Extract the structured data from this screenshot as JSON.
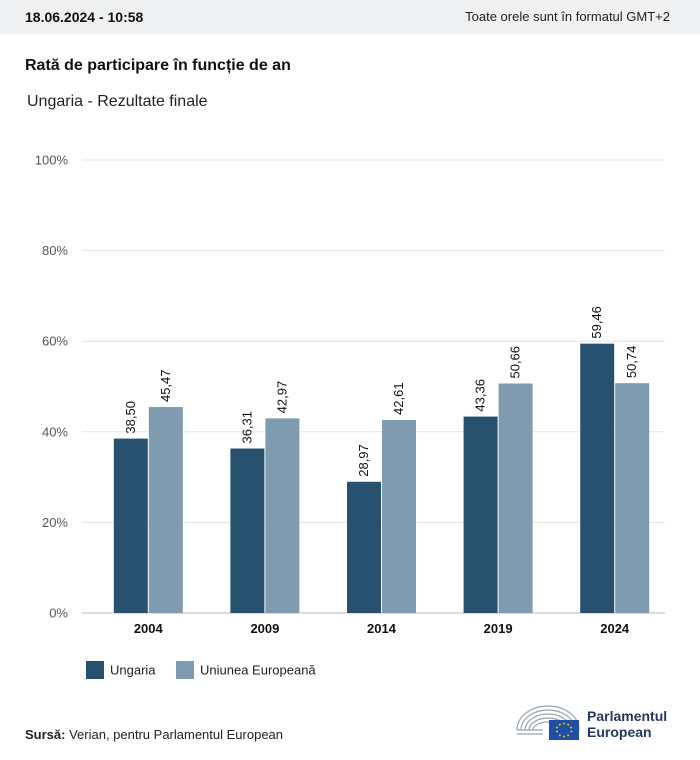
{
  "header": {
    "timestamp": "18.06.2024 - 10:58",
    "timezone_note": "Toate orele sunt în formatul GMT+2"
  },
  "title": "Rată de participare în funcție de an",
  "subtitle": "Ungaria - Rezultate finale",
  "colors": {
    "ungaria": "#27516f",
    "ue": "#7f9bb0",
    "grid": "#e3e3e3",
    "axis": "#bbbbbb"
  },
  "chart_data": {
    "type": "bar",
    "categories": [
      "2004",
      "2009",
      "2014",
      "2019",
      "2024"
    ],
    "series": [
      {
        "name": "Ungaria",
        "values": [
          38.5,
          36.31,
          28.97,
          43.36,
          59.46
        ],
        "labels": [
          "38,50",
          "36,31",
          "28,97",
          "43,36",
          "59,46"
        ]
      },
      {
        "name": "Uniunea Europeană",
        "values": [
          45.47,
          42.97,
          42.61,
          50.66,
          50.74
        ],
        "labels": [
          "45,47",
          "42,97",
          "42,61",
          "50,66",
          "50,74"
        ]
      }
    ],
    "ylim": [
      0,
      100
    ],
    "yticks": [
      "0%",
      "20%",
      "40%",
      "60%",
      "80%",
      "100%"
    ],
    "grid": true,
    "legend": "bottom-left"
  },
  "source": {
    "label": "Sursă:",
    "text": "Verian, pentru Parlamentul European"
  },
  "logo": {
    "line1": "Parlamentul",
    "line2": "European"
  }
}
